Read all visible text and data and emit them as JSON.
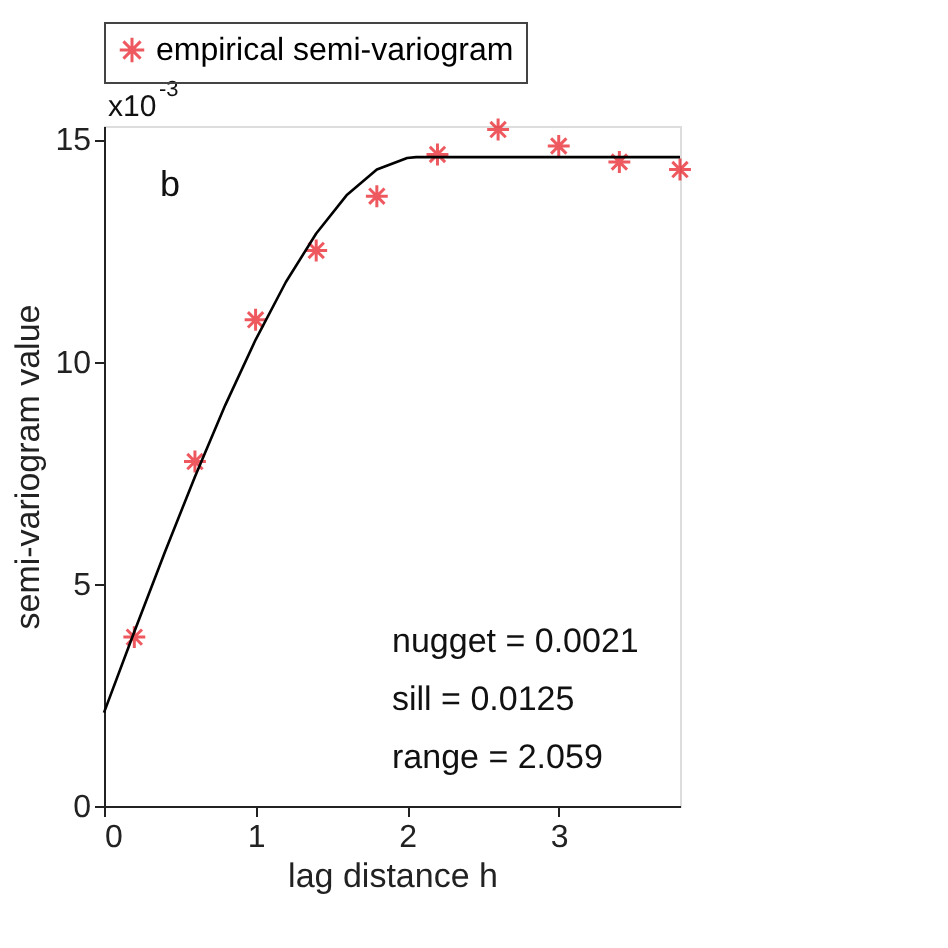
{
  "chart_data": {
    "type": "scatter",
    "xlabel": "lag distance h",
    "ylabel": "semi-variogram value",
    "annotations": [
      "x10$^{-3}$",
      "b",
      "nugget = 0.0021",
      "sill = 0.0125",
      "range = 2.059"
    ],
    "series": [
      {
        "name": "empirical semi-variogram",
        "color": "#e8141e",
        "marker": "cross",
        "x": [
          0.2,
          0.6,
          1.0,
          1.4,
          1.8,
          2.2,
          2.6,
          3.0,
          3.4,
          3.8
        ],
        "values": [
          3.8,
          7.75,
          10.94,
          12.5,
          13.72,
          14.66,
          15.22,
          14.85,
          14.49,
          14.32
        ]
      },
      {
        "type": "line",
        "color": "#000000",
        "marker": "none",
        "line_style": "solid",
        "x": [
          0,
          0.2,
          0.4,
          0.6,
          0.8,
          1.0,
          1.2,
          1.4,
          1.6,
          1.8,
          2.0,
          2.059,
          3.8
        ],
        "values": [
          2.1,
          3.92,
          5.7,
          7.41,
          9.02,
          10.49,
          11.79,
          12.88,
          13.74,
          14.32,
          14.58,
          14.6,
          14.6
        ]
      }
    ],
    "xlim": [
      0,
      3.8
    ],
    "xticks": [
      0,
      1,
      2,
      3
    ],
    "ylim": [
      0,
      15.3
    ],
    "yticks": [
      0,
      5,
      10,
      15
    ],
    "grid": false,
    "legend": "top"
  }
}
